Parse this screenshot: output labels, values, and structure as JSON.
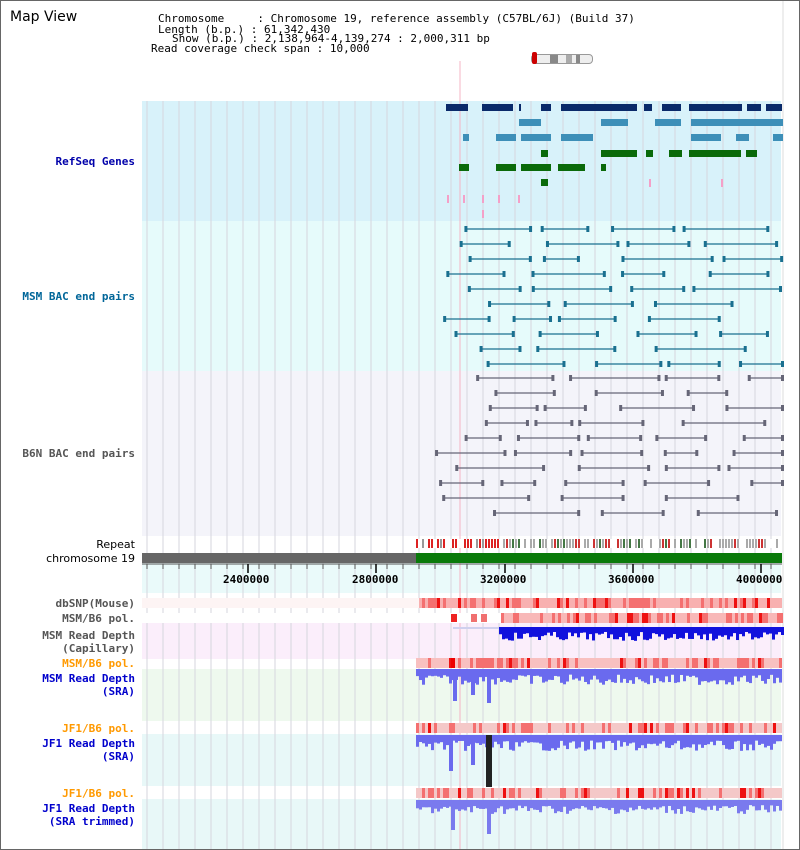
{
  "title": "Map View",
  "info": {
    "chromosome_label": "Chromosome",
    "chromosome_value": "Chromosome 19, reference assembly (C57BL/6J) (Build 37)",
    "length_label": "Length (b.p.)",
    "length_value": "61,342,430",
    "show_label": "Show (b.p.)",
    "show_value": "2,138,964-4,139,274 : 2,000,311 bp",
    "coverage_label": "Read coverage check span",
    "coverage_value": "10,000"
  },
  "tracks": {
    "refseq": "RefSeq Genes",
    "msm_bac": "MSM BAC end pairs",
    "b6n_bac": "B6N BAC end pairs",
    "repeat": "Repeat",
    "chromosome": "chromosome 19",
    "dbsnp": "dbSNP(Mouse)",
    "msm_b6_pol_1": "MSM/B6 pol.",
    "msm_depth_cap_1": "MSM Read Depth",
    "msm_depth_cap_2": "(Capillary)",
    "msm_b6_pol_2": "MSM/B6 pol.",
    "msm_depth_sra_1": "MSM Read Depth",
    "msm_depth_sra_2": "(SRA)",
    "jf1_b6_pol_1": "JF1/B6 pol.",
    "jf1_depth_sra_1": "JF1 Read Depth",
    "jf1_depth_sra_2": "(SRA)",
    "jf1_b6_pol_2": "JF1/B6 pol.",
    "jf1_depth_trim_1": "JF1 Read Depth",
    "jf1_depth_trim_2": "(SRA trimmed)"
  },
  "axis_ticks": [
    "2400000",
    "2800000",
    "3200000",
    "3600000",
    "4000000"
  ],
  "colors": {
    "refseq_label": "#0000aa",
    "msm_bac_label": "#006699",
    "b6n_bac_label": "#555555",
    "pol_orange": "#ff9900",
    "depth_blue": "#0000cc",
    "dbsnp_gray": "#555555"
  }
}
